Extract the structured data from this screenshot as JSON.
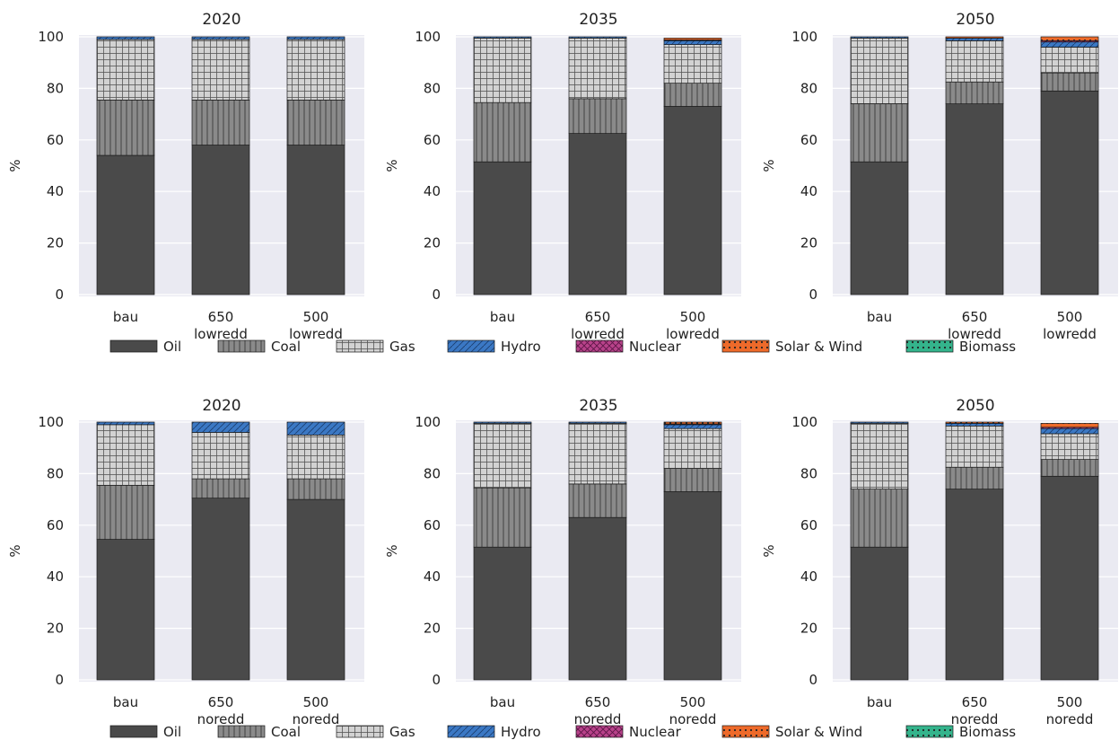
{
  "legend_items": [
    {
      "name": "Oil",
      "color": "#4a4a4a",
      "pattern": "solid",
      "icon": "oil-swatch"
    },
    {
      "name": "Coal",
      "color": "#8a8a8a",
      "pattern": "vlines",
      "icon": "coal-swatch"
    },
    {
      "name": "Gas",
      "color": "#d0d0d0",
      "pattern": "grid",
      "icon": "gas-swatch"
    },
    {
      "name": "Hydro",
      "color": "#3b78c4",
      "pattern": "diag",
      "icon": "hydro-swatch"
    },
    {
      "name": "Nuclear",
      "color": "#b8428a",
      "pattern": "cross",
      "icon": "nuclear-swatch"
    },
    {
      "name": "Solar & Wind",
      "color": "#ee6a2a",
      "pattern": "dots",
      "icon": "solar-wind-swatch"
    },
    {
      "name": "Biomass",
      "color": "#34b48c",
      "pattern": "dots",
      "icon": "biomass-swatch"
    }
  ],
  "chart_data": [
    {
      "type": "bar",
      "stacked": true,
      "title": "2020",
      "ylabel": "%",
      "ylim": [
        0,
        100
      ],
      "yticks": [
        0,
        20,
        40,
        60,
        80,
        100
      ],
      "grid": true,
      "legend": "bottom",
      "categories": [
        "bau",
        "650\nlowredd",
        "500\nlowredd"
      ],
      "series": [
        {
          "name": "Oil",
          "values": [
            54,
            58,
            58
          ]
        },
        {
          "name": "Coal",
          "values": [
            21.5,
            17.5,
            17.5
          ]
        },
        {
          "name": "Gas",
          "values": [
            23.5,
            23.5,
            23.5
          ]
        },
        {
          "name": "Hydro",
          "values": [
            1,
            1,
            1
          ]
        },
        {
          "name": "Nuclear",
          "values": [
            0,
            0,
            0
          ]
        },
        {
          "name": "Solar & Wind",
          "values": [
            0,
            0,
            0
          ]
        },
        {
          "name": "Biomass",
          "values": [
            0,
            0,
            0
          ]
        }
      ]
    },
    {
      "type": "bar",
      "stacked": true,
      "title": "2035",
      "ylabel": "%",
      "ylim": [
        0,
        100
      ],
      "yticks": [
        0,
        20,
        40,
        60,
        80,
        100
      ],
      "grid": true,
      "legend": "bottom",
      "categories": [
        "bau",
        "650\nlowredd",
        "500\nlowredd"
      ],
      "series": [
        {
          "name": "Oil",
          "values": [
            51.5,
            62.5,
            73
          ]
        },
        {
          "name": "Coal",
          "values": [
            23,
            13.5,
            9
          ]
        },
        {
          "name": "Gas",
          "values": [
            25,
            23.5,
            15
          ]
        },
        {
          "name": "Hydro",
          "values": [
            0.5,
            0.5,
            1.5
          ]
        },
        {
          "name": "Nuclear",
          "values": [
            0,
            0,
            0.3
          ]
        },
        {
          "name": "Solar & Wind",
          "values": [
            0,
            0,
            0.7
          ]
        },
        {
          "name": "Biomass",
          "values": [
            0,
            0,
            0
          ]
        }
      ]
    },
    {
      "type": "bar",
      "stacked": true,
      "title": "2050",
      "ylabel": "%",
      "ylim": [
        0,
        100
      ],
      "yticks": [
        0,
        20,
        40,
        60,
        80,
        100
      ],
      "grid": true,
      "legend": "bottom",
      "categories": [
        "bau",
        "650\nlowredd",
        "500\nlowredd"
      ],
      "series": [
        {
          "name": "Oil",
          "values": [
            51.5,
            74,
            79
          ]
        },
        {
          "name": "Coal",
          "values": [
            22.5,
            8.5,
            7
          ]
        },
        {
          "name": "Gas",
          "values": [
            25.5,
            16,
            10
          ]
        },
        {
          "name": "Hydro",
          "values": [
            0.5,
            1,
            2
          ]
        },
        {
          "name": "Nuclear",
          "values": [
            0,
            0,
            0.5
          ]
        },
        {
          "name": "Solar & Wind",
          "values": [
            0,
            0.5,
            1.5
          ]
        },
        {
          "name": "Biomass",
          "values": [
            0,
            0,
            0
          ]
        }
      ]
    },
    {
      "type": "bar",
      "stacked": true,
      "title": "2020",
      "ylabel": "%",
      "ylim": [
        0,
        100
      ],
      "yticks": [
        0,
        20,
        40,
        60,
        80,
        100
      ],
      "grid": true,
      "legend": "bottom",
      "categories": [
        "bau",
        "650\nnoredd",
        "500\nnoredd"
      ],
      "series": [
        {
          "name": "Oil",
          "values": [
            54.5,
            70.5,
            70
          ]
        },
        {
          "name": "Coal",
          "values": [
            21,
            7.5,
            8
          ]
        },
        {
          "name": "Gas",
          "values": [
            23.5,
            18,
            17
          ]
        },
        {
          "name": "Hydro",
          "values": [
            1,
            4,
            5
          ]
        },
        {
          "name": "Nuclear",
          "values": [
            0,
            0,
            0
          ]
        },
        {
          "name": "Solar & Wind",
          "values": [
            0,
            0,
            0
          ]
        },
        {
          "name": "Biomass",
          "values": [
            0,
            0,
            0
          ]
        }
      ]
    },
    {
      "type": "bar",
      "stacked": true,
      "title": "2035",
      "ylabel": "%",
      "ylim": [
        0,
        100
      ],
      "yticks": [
        0,
        20,
        40,
        60,
        80,
        100
      ],
      "grid": true,
      "legend": "bottom",
      "categories": [
        "bau",
        "650\nnoredd",
        "500\nnoredd"
      ],
      "series": [
        {
          "name": "Oil",
          "values": [
            51.5,
            63,
            73
          ]
        },
        {
          "name": "Coal",
          "values": [
            23,
            13,
            9
          ]
        },
        {
          "name": "Gas",
          "values": [
            25,
            23.5,
            15.5
          ]
        },
        {
          "name": "Hydro",
          "values": [
            0.5,
            0.5,
            1.5
          ]
        },
        {
          "name": "Nuclear",
          "values": [
            0,
            0,
            0.3
          ]
        },
        {
          "name": "Solar & Wind",
          "values": [
            0,
            0,
            0.7
          ]
        },
        {
          "name": "Biomass",
          "values": [
            0,
            0,
            0
          ]
        }
      ]
    },
    {
      "type": "bar",
      "stacked": true,
      "title": "2050",
      "ylabel": "%",
      "ylim": [
        0,
        100
      ],
      "yticks": [
        0,
        20,
        40,
        60,
        80,
        100
      ],
      "grid": true,
      "legend": "bottom",
      "categories": [
        "bau",
        "650\nnoredd",
        "500\nnoredd"
      ],
      "series": [
        {
          "name": "Oil",
          "values": [
            51.5,
            74,
            79
          ]
        },
        {
          "name": "Coal",
          "values": [
            22.5,
            8.5,
            6.5
          ]
        },
        {
          "name": "Gas",
          "values": [
            25.5,
            16,
            10
          ]
        },
        {
          "name": "Hydro",
          "values": [
            0.5,
            1,
            2
          ]
        },
        {
          "name": "Nuclear",
          "values": [
            0,
            0,
            0.5
          ]
        },
        {
          "name": "Solar & Wind",
          "values": [
            0,
            0.5,
            1.5
          ]
        },
        {
          "name": "Biomass",
          "values": [
            0,
            0,
            0
          ]
        }
      ]
    }
  ]
}
